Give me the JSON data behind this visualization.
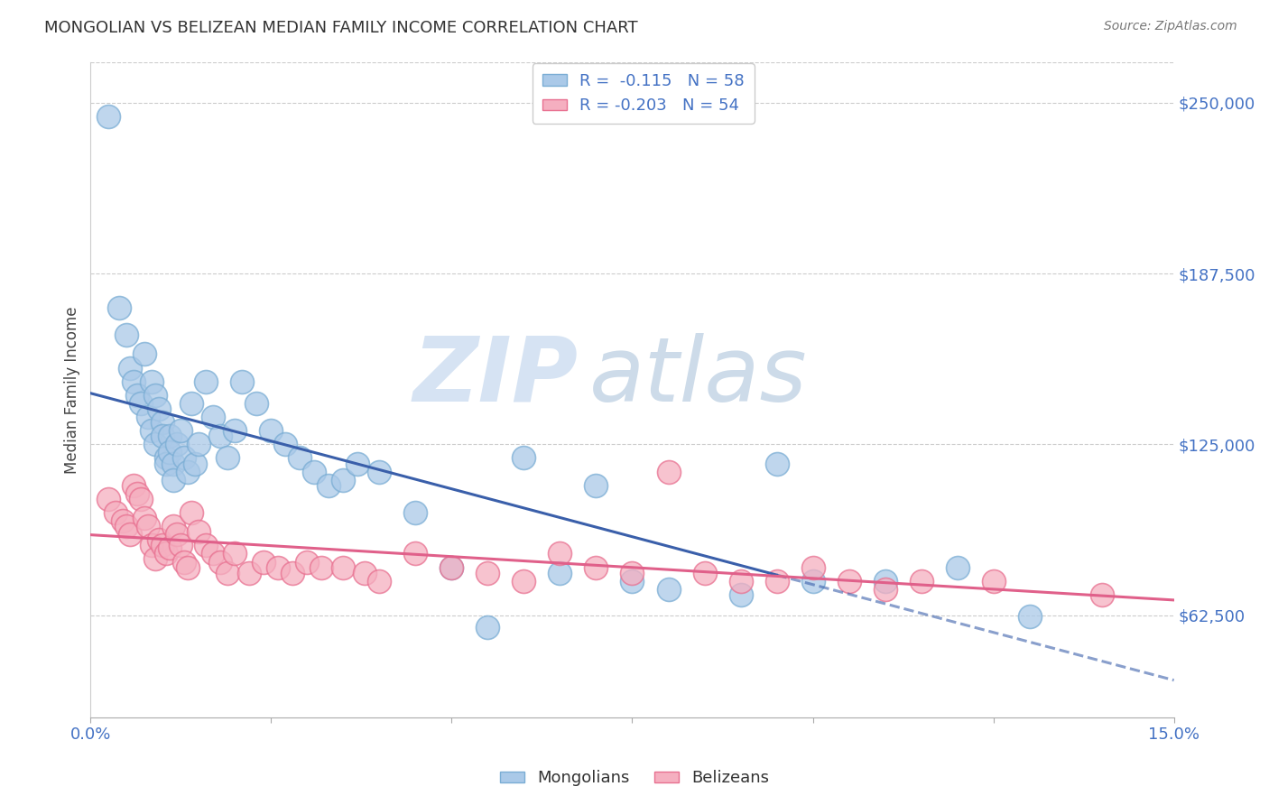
{
  "title": "MONGOLIAN VS BELIZEAN MEDIAN FAMILY INCOME CORRELATION CHART",
  "source": "Source: ZipAtlas.com",
  "ylabel": "Median Family Income",
  "y_ticks": [
    62500,
    125000,
    187500,
    250000
  ],
  "y_tick_labels": [
    "$62,500",
    "$125,000",
    "$187,500",
    "$250,000"
  ],
  "x_min": 0.0,
  "x_max": 15.0,
  "y_min": 25000,
  "y_max": 265000,
  "mongolian_R": "-0.115",
  "mongolian_N": "58",
  "belizean_R": "-0.203",
  "belizean_N": "54",
  "mongolian_color": "#aac9e8",
  "mongolian_color_edge": "#7aadd4",
  "belizean_color": "#f5afc0",
  "belizean_color_edge": "#e87090",
  "mongolian_line_color": "#3a5faa",
  "belizean_line_color": "#e0608a",
  "tick_color": "#4472c4",
  "watermark_zip": "ZIP",
  "watermark_atlas": "atlas",
  "mongolian_line_x_solid_end": 9.5,
  "mongolian_points_x": [
    0.25,
    0.4,
    0.5,
    0.55,
    0.6,
    0.65,
    0.7,
    0.75,
    0.8,
    0.85,
    0.85,
    0.9,
    0.9,
    0.95,
    1.0,
    1.0,
    1.05,
    1.05,
    1.1,
    1.1,
    1.15,
    1.15,
    1.2,
    1.25,
    1.3,
    1.35,
    1.4,
    1.45,
    1.5,
    1.6,
    1.7,
    1.8,
    1.9,
    2.0,
    2.1,
    2.3,
    2.5,
    2.7,
    2.9,
    3.1,
    3.3,
    3.5,
    3.7,
    4.0,
    4.5,
    5.0,
    5.5,
    6.0,
    6.5,
    7.0,
    7.5,
    8.0,
    9.0,
    9.5,
    10.0,
    11.0,
    12.0,
    13.0
  ],
  "mongolian_points_y": [
    245000,
    175000,
    165000,
    153000,
    148000,
    143000,
    140000,
    158000,
    135000,
    130000,
    148000,
    143000,
    125000,
    138000,
    133000,
    128000,
    120000,
    118000,
    128000,
    122000,
    118000,
    112000,
    125000,
    130000,
    120000,
    115000,
    140000,
    118000,
    125000,
    148000,
    135000,
    128000,
    120000,
    130000,
    148000,
    140000,
    130000,
    125000,
    120000,
    115000,
    110000,
    112000,
    118000,
    115000,
    100000,
    80000,
    58000,
    120000,
    78000,
    110000,
    75000,
    72000,
    70000,
    118000,
    75000,
    75000,
    80000,
    62000
  ],
  "belizean_points_x": [
    0.25,
    0.35,
    0.45,
    0.5,
    0.55,
    0.6,
    0.65,
    0.7,
    0.75,
    0.8,
    0.85,
    0.9,
    0.95,
    1.0,
    1.05,
    1.1,
    1.15,
    1.2,
    1.25,
    1.3,
    1.35,
    1.4,
    1.5,
    1.6,
    1.7,
    1.8,
    1.9,
    2.0,
    2.2,
    2.4,
    2.6,
    2.8,
    3.0,
    3.2,
    3.5,
    3.8,
    4.0,
    4.5,
    5.0,
    5.5,
    6.0,
    6.5,
    7.0,
    7.5,
    8.0,
    8.5,
    9.0,
    9.5,
    10.0,
    10.5,
    11.0,
    11.5,
    12.5,
    14.0
  ],
  "belizean_points_y": [
    105000,
    100000,
    97000,
    95000,
    92000,
    110000,
    107000,
    105000,
    98000,
    95000,
    88000,
    83000,
    90000,
    88000,
    85000,
    87000,
    95000,
    92000,
    88000,
    82000,
    80000,
    100000,
    93000,
    88000,
    85000,
    82000,
    78000,
    85000,
    78000,
    82000,
    80000,
    78000,
    82000,
    80000,
    80000,
    78000,
    75000,
    85000,
    80000,
    78000,
    75000,
    85000,
    80000,
    78000,
    115000,
    78000,
    75000,
    75000,
    80000,
    75000,
    72000,
    75000,
    75000,
    70000
  ]
}
